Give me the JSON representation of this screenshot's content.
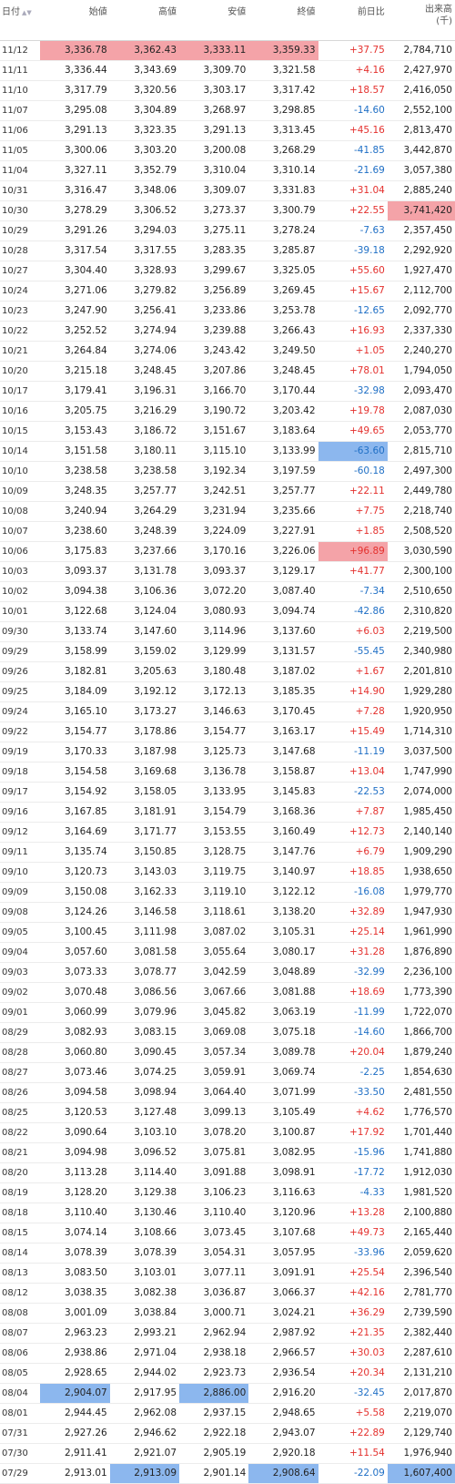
{
  "headers": {
    "date": "日付",
    "open": "始値",
    "high": "高値",
    "low": "安値",
    "close": "終値",
    "change": "前日比",
    "volume": "出来高",
    "volume_unit": "(千)"
  },
  "colors": {
    "up": "#e4302d",
    "down": "#1f6fc5",
    "highlight_max": "#f4a3a8",
    "highlight_min": "#8cb7ee"
  },
  "rows": [
    {
      "date": "11/12",
      "open": "3,336.78",
      "high": "3,362.43",
      "low": "3,333.11",
      "close": "3,359.33",
      "change": "+37.75",
      "volume": "2,784,710",
      "hl": {
        "open": "hi",
        "high": "hi",
        "low": "hi",
        "close": "hi"
      }
    },
    {
      "date": "11/11",
      "open": "3,336.44",
      "high": "3,343.69",
      "low": "3,309.70",
      "close": "3,321.58",
      "change": "+4.16",
      "volume": "2,427,970"
    },
    {
      "date": "11/10",
      "open": "3,317.79",
      "high": "3,320.56",
      "low": "3,303.17",
      "close": "3,317.42",
      "change": "+18.57",
      "volume": "2,416,050"
    },
    {
      "date": "11/07",
      "open": "3,295.08",
      "high": "3,304.89",
      "low": "3,268.97",
      "close": "3,298.85",
      "change": "-14.60",
      "volume": "2,552,100"
    },
    {
      "date": "11/06",
      "open": "3,291.13",
      "high": "3,323.35",
      "low": "3,291.13",
      "close": "3,313.45",
      "change": "+45.16",
      "volume": "2,813,470"
    },
    {
      "date": "11/05",
      "open": "3,300.06",
      "high": "3,303.20",
      "low": "3,200.08",
      "close": "3,268.29",
      "change": "-41.85",
      "volume": "3,442,870"
    },
    {
      "date": "11/04",
      "open": "3,327.11",
      "high": "3,352.79",
      "low": "3,310.04",
      "close": "3,310.14",
      "change": "-21.69",
      "volume": "3,057,380"
    },
    {
      "date": "10/31",
      "open": "3,316.47",
      "high": "3,348.06",
      "low": "3,309.07",
      "close": "3,331.83",
      "change": "+31.04",
      "volume": "2,885,240"
    },
    {
      "date": "10/30",
      "open": "3,278.29",
      "high": "3,306.52",
      "low": "3,273.37",
      "close": "3,300.79",
      "change": "+22.55",
      "volume": "3,741,420",
      "hl": {
        "volume": "hi"
      }
    },
    {
      "date": "10/29",
      "open": "3,291.26",
      "high": "3,294.03",
      "low": "3,275.11",
      "close": "3,278.24",
      "change": "-7.63",
      "volume": "2,357,450"
    },
    {
      "date": "10/28",
      "open": "3,317.54",
      "high": "3,317.55",
      "low": "3,283.35",
      "close": "3,285.87",
      "change": "-39.18",
      "volume": "2,292,920"
    },
    {
      "date": "10/27",
      "open": "3,304.40",
      "high": "3,328.93",
      "low": "3,299.67",
      "close": "3,325.05",
      "change": "+55.60",
      "volume": "1,927,470"
    },
    {
      "date": "10/24",
      "open": "3,271.06",
      "high": "3,279.82",
      "low": "3,256.89",
      "close": "3,269.45",
      "change": "+15.67",
      "volume": "2,112,700"
    },
    {
      "date": "10/23",
      "open": "3,247.90",
      "high": "3,256.41",
      "low": "3,233.86",
      "close": "3,253.78",
      "change": "-12.65",
      "volume": "2,092,770"
    },
    {
      "date": "10/22",
      "open": "3,252.52",
      "high": "3,274.94",
      "low": "3,239.88",
      "close": "3,266.43",
      "change": "+16.93",
      "volume": "2,337,330"
    },
    {
      "date": "10/21",
      "open": "3,264.84",
      "high": "3,274.06",
      "low": "3,243.42",
      "close": "3,249.50",
      "change": "+1.05",
      "volume": "2,240,270"
    },
    {
      "date": "10/20",
      "open": "3,215.18",
      "high": "3,248.45",
      "low": "3,207.86",
      "close": "3,248.45",
      "change": "+78.01",
      "volume": "1,794,050"
    },
    {
      "date": "10/17",
      "open": "3,179.41",
      "high": "3,196.31",
      "low": "3,166.70",
      "close": "3,170.44",
      "change": "-32.98",
      "volume": "2,093,470"
    },
    {
      "date": "10/16",
      "open": "3,205.75",
      "high": "3,216.29",
      "low": "3,190.72",
      "close": "3,203.42",
      "change": "+19.78",
      "volume": "2,087,030"
    },
    {
      "date": "10/15",
      "open": "3,153.43",
      "high": "3,186.72",
      "low": "3,151.67",
      "close": "3,183.64",
      "change": "+49.65",
      "volume": "2,053,770"
    },
    {
      "date": "10/14",
      "open": "3,151.58",
      "high": "3,180.11",
      "low": "3,115.10",
      "close": "3,133.99",
      "change": "-63.60",
      "volume": "2,815,710",
      "hl": {
        "change": "lo"
      }
    },
    {
      "date": "10/10",
      "open": "3,238.58",
      "high": "3,238.58",
      "low": "3,192.34",
      "close": "3,197.59",
      "change": "-60.18",
      "volume": "2,497,300"
    },
    {
      "date": "10/09",
      "open": "3,248.35",
      "high": "3,257.77",
      "low": "3,242.51",
      "close": "3,257.77",
      "change": "+22.11",
      "volume": "2,449,780"
    },
    {
      "date": "10/08",
      "open": "3,240.94",
      "high": "3,264.29",
      "low": "3,231.94",
      "close": "3,235.66",
      "change": "+7.75",
      "volume": "2,218,740"
    },
    {
      "date": "10/07",
      "open": "3,238.60",
      "high": "3,248.39",
      "low": "3,224.09",
      "close": "3,227.91",
      "change": "+1.85",
      "volume": "2,508,520"
    },
    {
      "date": "10/06",
      "open": "3,175.83",
      "high": "3,237.66",
      "low": "3,170.16",
      "close": "3,226.06",
      "change": "+96.89",
      "volume": "3,030,590",
      "hl": {
        "change": "hi"
      }
    },
    {
      "date": "10/03",
      "open": "3,093.37",
      "high": "3,131.78",
      "low": "3,093.37",
      "close": "3,129.17",
      "change": "+41.77",
      "volume": "2,300,100"
    },
    {
      "date": "10/02",
      "open": "3,094.38",
      "high": "3,106.36",
      "low": "3,072.20",
      "close": "3,087.40",
      "change": "-7.34",
      "volume": "2,510,650"
    },
    {
      "date": "10/01",
      "open": "3,122.68",
      "high": "3,124.04",
      "low": "3,080.93",
      "close": "3,094.74",
      "change": "-42.86",
      "volume": "2,310,820"
    },
    {
      "date": "09/30",
      "open": "3,133.74",
      "high": "3,147.60",
      "low": "3,114.96",
      "close": "3,137.60",
      "change": "+6.03",
      "volume": "2,219,500"
    },
    {
      "date": "09/29",
      "open": "3,158.99",
      "high": "3,159.02",
      "low": "3,129.99",
      "close": "3,131.57",
      "change": "-55.45",
      "volume": "2,340,980"
    },
    {
      "date": "09/26",
      "open": "3,182.81",
      "high": "3,205.63",
      "low": "3,180.48",
      "close": "3,187.02",
      "change": "+1.67",
      "volume": "2,201,810"
    },
    {
      "date": "09/25",
      "open": "3,184.09",
      "high": "3,192.12",
      "low": "3,172.13",
      "close": "3,185.35",
      "change": "+14.90",
      "volume": "1,929,280"
    },
    {
      "date": "09/24",
      "open": "3,165.10",
      "high": "3,173.27",
      "low": "3,146.63",
      "close": "3,170.45",
      "change": "+7.28",
      "volume": "1,920,950"
    },
    {
      "date": "09/22",
      "open": "3,154.77",
      "high": "3,178.86",
      "low": "3,154.77",
      "close": "3,163.17",
      "change": "+15.49",
      "volume": "1,714,310"
    },
    {
      "date": "09/19",
      "open": "3,170.33",
      "high": "3,187.98",
      "low": "3,125.73",
      "close": "3,147.68",
      "change": "-11.19",
      "volume": "3,037,500"
    },
    {
      "date": "09/18",
      "open": "3,154.58",
      "high": "3,169.68",
      "low": "3,136.78",
      "close": "3,158.87",
      "change": "+13.04",
      "volume": "1,747,990"
    },
    {
      "date": "09/17",
      "open": "3,154.92",
      "high": "3,158.05",
      "low": "3,133.95",
      "close": "3,145.83",
      "change": "-22.53",
      "volume": "2,074,000"
    },
    {
      "date": "09/16",
      "open": "3,167.85",
      "high": "3,181.91",
      "low": "3,154.79",
      "close": "3,168.36",
      "change": "+7.87",
      "volume": "1,985,450"
    },
    {
      "date": "09/12",
      "open": "3,164.69",
      "high": "3,171.77",
      "low": "3,153.55",
      "close": "3,160.49",
      "change": "+12.73",
      "volume": "2,140,140"
    },
    {
      "date": "09/11",
      "open": "3,135.74",
      "high": "3,150.85",
      "low": "3,128.75",
      "close": "3,147.76",
      "change": "+6.79",
      "volume": "1,909,290"
    },
    {
      "date": "09/10",
      "open": "3,120.73",
      "high": "3,143.03",
      "low": "3,119.75",
      "close": "3,140.97",
      "change": "+18.85",
      "volume": "1,938,650"
    },
    {
      "date": "09/09",
      "open": "3,150.08",
      "high": "3,162.33",
      "low": "3,119.10",
      "close": "3,122.12",
      "change": "-16.08",
      "volume": "1,979,770"
    },
    {
      "date": "09/08",
      "open": "3,124.26",
      "high": "3,146.58",
      "low": "3,118.61",
      "close": "3,138.20",
      "change": "+32.89",
      "volume": "1,947,930"
    },
    {
      "date": "09/05",
      "open": "3,100.45",
      "high": "3,111.98",
      "low": "3,087.02",
      "close": "3,105.31",
      "change": "+25.14",
      "volume": "1,961,990"
    },
    {
      "date": "09/04",
      "open": "3,057.60",
      "high": "3,081.58",
      "low": "3,055.64",
      "close": "3,080.17",
      "change": "+31.28",
      "volume": "1,876,890"
    },
    {
      "date": "09/03",
      "open": "3,073.33",
      "high": "3,078.77",
      "low": "3,042.59",
      "close": "3,048.89",
      "change": "-32.99",
      "volume": "2,236,100"
    },
    {
      "date": "09/02",
      "open": "3,070.48",
      "high": "3,086.56",
      "low": "3,067.66",
      "close": "3,081.88",
      "change": "+18.69",
      "volume": "1,773,390"
    },
    {
      "date": "09/01",
      "open": "3,060.99",
      "high": "3,079.96",
      "low": "3,045.82",
      "close": "3,063.19",
      "change": "-11.99",
      "volume": "1,722,070"
    },
    {
      "date": "08/29",
      "open": "3,082.93",
      "high": "3,083.15",
      "low": "3,069.08",
      "close": "3,075.18",
      "change": "-14.60",
      "volume": "1,866,700"
    },
    {
      "date": "08/28",
      "open": "3,060.80",
      "high": "3,090.45",
      "low": "3,057.34",
      "close": "3,089.78",
      "change": "+20.04",
      "volume": "1,879,240"
    },
    {
      "date": "08/27",
      "open": "3,073.46",
      "high": "3,074.25",
      "low": "3,059.91",
      "close": "3,069.74",
      "change": "-2.25",
      "volume": "1,854,630"
    },
    {
      "date": "08/26",
      "open": "3,094.58",
      "high": "3,098.94",
      "low": "3,064.40",
      "close": "3,071.99",
      "change": "-33.50",
      "volume": "2,481,550"
    },
    {
      "date": "08/25",
      "open": "3,120.53",
      "high": "3,127.48",
      "low": "3,099.13",
      "close": "3,105.49",
      "change": "+4.62",
      "volume": "1,776,570"
    },
    {
      "date": "08/22",
      "open": "3,090.64",
      "high": "3,103.10",
      "low": "3,078.20",
      "close": "3,100.87",
      "change": "+17.92",
      "volume": "1,701,440"
    },
    {
      "date": "08/21",
      "open": "3,094.98",
      "high": "3,096.52",
      "low": "3,075.81",
      "close": "3,082.95",
      "change": "-15.96",
      "volume": "1,741,880"
    },
    {
      "date": "08/20",
      "open": "3,113.28",
      "high": "3,114.40",
      "low": "3,091.88",
      "close": "3,098.91",
      "change": "-17.72",
      "volume": "1,912,030"
    },
    {
      "date": "08/19",
      "open": "3,128.20",
      "high": "3,129.38",
      "low": "3,106.23",
      "close": "3,116.63",
      "change": "-4.33",
      "volume": "1,981,520"
    },
    {
      "date": "08/18",
      "open": "3,110.40",
      "high": "3,130.46",
      "low": "3,110.40",
      "close": "3,120.96",
      "change": "+13.28",
      "volume": "2,100,880"
    },
    {
      "date": "08/15",
      "open": "3,074.14",
      "high": "3,108.66",
      "low": "3,073.45",
      "close": "3,107.68",
      "change": "+49.73",
      "volume": "2,165,440"
    },
    {
      "date": "08/14",
      "open": "3,078.39",
      "high": "3,078.39",
      "low": "3,054.31",
      "close": "3,057.95",
      "change": "-33.96",
      "volume": "2,059,620"
    },
    {
      "date": "08/13",
      "open": "3,083.50",
      "high": "3,103.01",
      "low": "3,077.11",
      "close": "3,091.91",
      "change": "+25.54",
      "volume": "2,396,540"
    },
    {
      "date": "08/12",
      "open": "3,038.35",
      "high": "3,082.38",
      "low": "3,036.87",
      "close": "3,066.37",
      "change": "+42.16",
      "volume": "2,781,770"
    },
    {
      "date": "08/08",
      "open": "3,001.09",
      "high": "3,038.84",
      "low": "3,000.71",
      "close": "3,024.21",
      "change": "+36.29",
      "volume": "2,739,590"
    },
    {
      "date": "08/07",
      "open": "2,963.23",
      "high": "2,993.21",
      "low": "2,962.94",
      "close": "2,987.92",
      "change": "+21.35",
      "volume": "2,382,440"
    },
    {
      "date": "08/06",
      "open": "2,938.86",
      "high": "2,971.04",
      "low": "2,938.18",
      "close": "2,966.57",
      "change": "+30.03",
      "volume": "2,287,610"
    },
    {
      "date": "08/05",
      "open": "2,928.65",
      "high": "2,944.02",
      "low": "2,923.73",
      "close": "2,936.54",
      "change": "+20.34",
      "volume": "2,131,210"
    },
    {
      "date": "08/04",
      "open": "2,904.07",
      "high": "2,917.95",
      "low": "2,886.00",
      "close": "2,916.20",
      "change": "-32.45",
      "volume": "2,017,870",
      "hl": {
        "open": "lo",
        "low": "lo"
      }
    },
    {
      "date": "08/01",
      "open": "2,944.45",
      "high": "2,962.08",
      "low": "2,937.15",
      "close": "2,948.65",
      "change": "+5.58",
      "volume": "2,219,070"
    },
    {
      "date": "07/31",
      "open": "2,927.26",
      "high": "2,946.62",
      "low": "2,922.18",
      "close": "2,943.07",
      "change": "+22.89",
      "volume": "2,129,740"
    },
    {
      "date": "07/30",
      "open": "2,911.41",
      "high": "2,921.07",
      "low": "2,905.19",
      "close": "2,920.18",
      "change": "+11.54",
      "volume": "1,976,940"
    },
    {
      "date": "07/29",
      "open": "2,913.01",
      "high": "2,913.09",
      "low": "2,901.14",
      "close": "2,908.64",
      "change": "-22.09",
      "volume": "1,607,400",
      "hl": {
        "high": "lo",
        "close": "lo",
        "volume": "lo"
      }
    }
  ]
}
